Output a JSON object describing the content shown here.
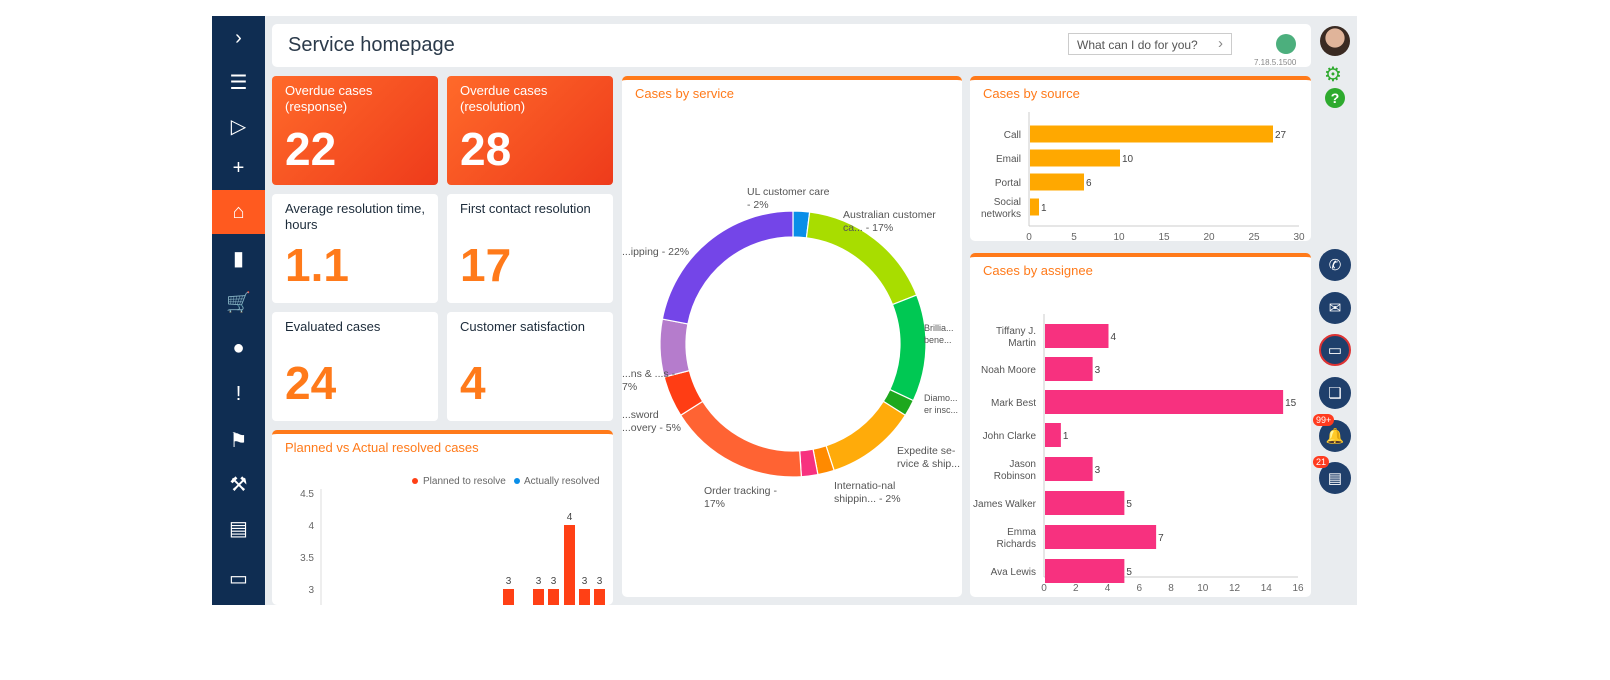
{
  "header": {
    "title": "Service homepage",
    "search_placeholder": "What can I do for you?",
    "version": "7.18.5.1500"
  },
  "sidebar": {
    "items": [
      {
        "icon": "chevron-right-icon",
        "glyph": "›"
      },
      {
        "icon": "menu-icon",
        "glyph": "☰"
      },
      {
        "icon": "play-icon",
        "glyph": "▷"
      },
      {
        "icon": "plus-icon",
        "glyph": "+"
      },
      {
        "icon": "home-icon",
        "glyph": "⌂"
      },
      {
        "icon": "dashboard-icon",
        "glyph": "▮"
      },
      {
        "icon": "cart-icon",
        "glyph": "🛒"
      },
      {
        "icon": "contact-icon",
        "glyph": "●"
      },
      {
        "icon": "cases-icon",
        "glyph": "!"
      },
      {
        "icon": "flag-icon",
        "glyph": "⚑"
      },
      {
        "icon": "tools-icon",
        "glyph": "⚒"
      },
      {
        "icon": "document-icon",
        "glyph": "▤"
      },
      {
        "icon": "book-icon",
        "glyph": "▭"
      }
    ]
  },
  "tiles": [
    {
      "label": "Overdue cases (response)",
      "value": "22"
    },
    {
      "label": "Overdue cases (resolution)",
      "value": "28"
    },
    {
      "label": "Average resolution time, hours",
      "value": "1.1"
    },
    {
      "label": "First contact resolution",
      "value": "17"
    },
    {
      "label": "Evaluated cases",
      "value": "24"
    },
    {
      "label": "Customer satisfaction",
      "value": "4"
    }
  ],
  "rail": {
    "badges": {
      "notifications": "99+",
      "feed": "21"
    }
  },
  "colors": {
    "accent": "#ff7a1a",
    "sidebar": "#0f2d52",
    "source_bar": "#ffa800",
    "assignee_bar": "#f7317f",
    "planned": "#ff4015",
    "actual": "#0a8ee8"
  },
  "chart_data": [
    {
      "type": "bar",
      "title": "Planned vs Actual resolved cases",
      "legend": [
        "Planned to resolve",
        "Actually resolved"
      ],
      "y_ticks": [
        "4.5",
        "4",
        "3.5",
        "3"
      ],
      "values": [
        3,
        3,
        3,
        4,
        3,
        3
      ],
      "series": [
        {
          "name": "Planned to resolve",
          "values": [
            3,
            3,
            3,
            4,
            3,
            3
          ]
        }
      ]
    },
    {
      "type": "pie",
      "title": "Cases by service",
      "slices": [
        {
          "label": "UL customer care - 2%",
          "value": 2,
          "color": "#0a8ee8"
        },
        {
          "label": "Australian customer ca... - 17%",
          "value": 17,
          "color": "#a8dd00"
        },
        {
          "label": "Brillia... bene...",
          "value": 13,
          "color": "#00c853"
        },
        {
          "label": "Diamo... er insc...",
          "value": 2,
          "color": "#1ea81e"
        },
        {
          "label": "Expedite se-rvice & ship...",
          "value": 11,
          "color": "#ffab0a"
        },
        {
          "label": "",
          "value": 2,
          "color": "#ff8a00"
        },
        {
          "label": "Internatio-nal shippin... - 2%",
          "value": 2,
          "color": "#f7317f"
        },
        {
          "label": "Order tracking - 17%",
          "value": 17,
          "color": "#ff6333"
        },
        {
          "label": "...sword ...overy - 5%",
          "value": 5,
          "color": "#ff3d14"
        },
        {
          "label": "...ns & ...s - 7%",
          "value": 7,
          "color": "#b57ccc"
        },
        {
          "label": "...ipping - 22%",
          "value": 22,
          "color": "#7445e8"
        }
      ]
    },
    {
      "type": "bar",
      "orientation": "horizontal",
      "title": "Cases by source",
      "categories": [
        "Call",
        "Email",
        "Portal",
        "Social networks"
      ],
      "values": [
        27,
        10,
        6,
        1
      ],
      "xlim": [
        0,
        30
      ],
      "x_ticks": [
        "0",
        "5",
        "10",
        "15",
        "20",
        "25",
        "30"
      ]
    },
    {
      "type": "bar",
      "orientation": "horizontal",
      "title": "Cases by assignee",
      "categories": [
        "Tiffany J. Martin",
        "Noah Moore",
        "Mark Best",
        "John Clarke",
        "Jason Robinson",
        "James Walker",
        "Emma Richards",
        "Ava Lewis"
      ],
      "values": [
        4,
        3,
        15,
        1,
        3,
        5,
        7,
        5
      ],
      "xlim": [
        0,
        16
      ],
      "x_ticks": [
        "0",
        "2",
        "4",
        "6",
        "8",
        "10",
        "12",
        "14",
        "16"
      ]
    }
  ]
}
